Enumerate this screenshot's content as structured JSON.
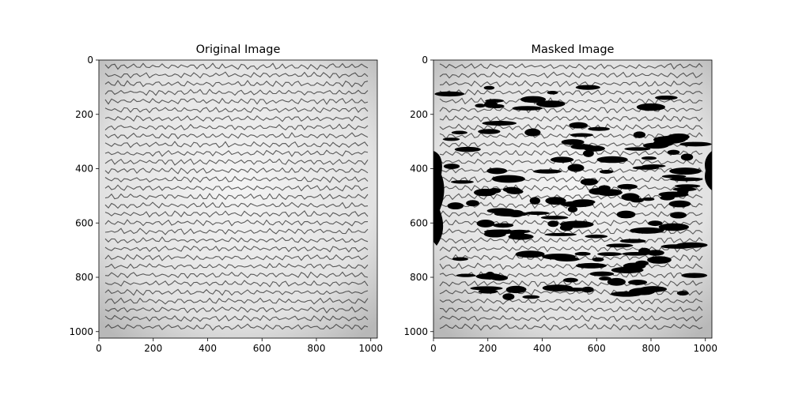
{
  "chart_data": [
    {
      "type": "image",
      "title": "Original Image",
      "xlim": [
        0,
        1024
      ],
      "ylim": [
        1024,
        0
      ],
      "xticks": [
        0,
        200,
        400,
        600,
        800,
        1000
      ],
      "yticks": [
        0,
        200,
        400,
        600,
        800,
        1000
      ]
    },
    {
      "type": "image",
      "title": "Masked Image",
      "xlim": [
        0,
        1024
      ],
      "ylim": [
        1024,
        0
      ],
      "xticks": [
        0,
        200,
        400,
        600,
        800,
        1000
      ],
      "yticks": [
        0,
        200,
        400,
        600,
        800,
        1000
      ]
    }
  ]
}
